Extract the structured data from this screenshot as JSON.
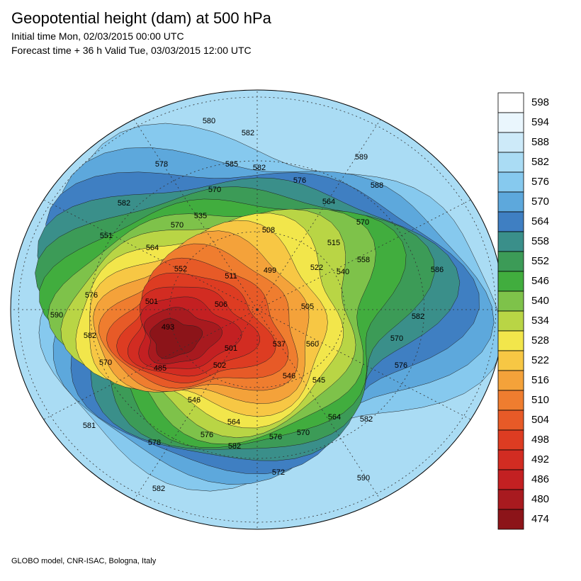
{
  "header": {
    "title": "Geopotential height (dam) at 500 hPa",
    "initial": "Initial time Mon, 02/03/2015 00:00 UTC",
    "forecast": "Forecast time + 36 h Valid Tue, 03/03/2015 12:00 UTC"
  },
  "legend": {
    "labels": [
      "598",
      "594",
      "588",
      "582",
      "576",
      "570",
      "564",
      "558",
      "552",
      "546",
      "540",
      "534",
      "528",
      "522",
      "516",
      "510",
      "504",
      "498",
      "492",
      "486",
      "480",
      "474"
    ],
    "colors": [
      "#ffffff",
      "#eaf6fd",
      "#cdeaf9",
      "#aadcf4",
      "#86c9ee",
      "#5da8dc",
      "#3f7fc2",
      "#3a8f8a",
      "#3c9b57",
      "#41ad3e",
      "#7ec24a",
      "#b9d545",
      "#f2e64b",
      "#f7c744",
      "#f4a23a",
      "#ef7d2f",
      "#e75a27",
      "#dd3c22",
      "#d22c22",
      "#c32022",
      "#a81a1f",
      "#8c1419"
    ]
  },
  "map": {
    "contour_labels": [
      "580",
      "582",
      "578",
      "585",
      "582",
      "589",
      "588",
      "576",
      "570",
      "564",
      "582",
      "535",
      "570",
      "551",
      "508",
      "515",
      "570",
      "564",
      "552",
      "511",
      "499",
      "522",
      "540",
      "558",
      "586",
      "576",
      "501",
      "506",
      "505",
      "590",
      "582",
      "493",
      "570",
      "582",
      "537",
      "560",
      "501",
      "570",
      "485",
      "502",
      "546",
      "545",
      "576",
      "546",
      "564",
      "564",
      "582",
      "581",
      "576",
      "576",
      "570",
      "578",
      "582",
      "572",
      "590",
      "582"
    ]
  },
  "footer": "GLOBO model, CNR-ISAC, Bologna, Italy"
}
